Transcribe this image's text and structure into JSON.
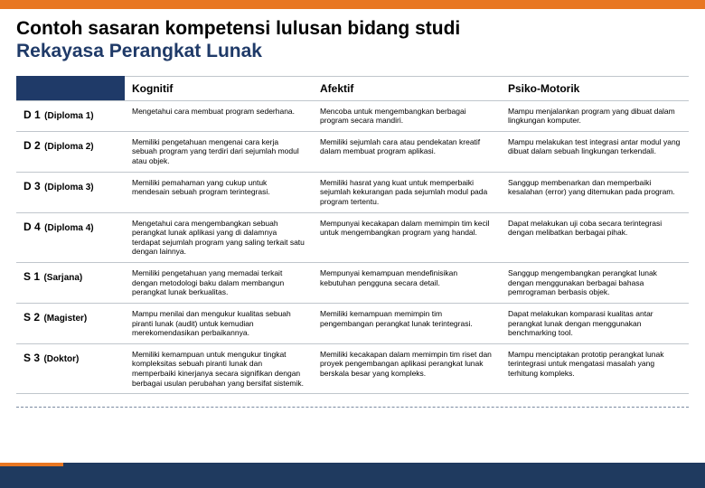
{
  "colors": {
    "orange": "#e87722",
    "navy": "#1f3a68",
    "footer": "#1f3a5f",
    "title_accent": "#1f3a68",
    "grid": "#c0c6cc"
  },
  "title": {
    "line1": "Contoh sasaran kompetensi lulusan bidang studi",
    "line2": "Rekayasa Perangkat Lunak"
  },
  "headers": {
    "kognitif": "Kognitif",
    "afektif": "Afektif",
    "psiko": "Psiko-Motorik"
  },
  "rows": [
    {
      "level": "D 1",
      "note": "(Diploma 1)",
      "kognitif": "Mengetahui cara membuat program sederhana.",
      "afektif": "Mencoba untuk mengembangkan berbagai program secara mandiri.",
      "psiko": "Mampu menjalankan program yang dibuat dalam lingkungan komputer."
    },
    {
      "level": "D 2",
      "note": "(Diploma 2)",
      "kognitif": "Memiliki pengetahuan mengenai cara kerja sebuah program yang terdiri dari sejumlah modul atau objek.",
      "afektif": "Memiliki sejumlah cara atau pendekatan kreatif dalam membuat program aplikasi.",
      "psiko": "Mampu melakukan test integrasi antar modul yang dibuat dalam sebuah lingkungan terkendali."
    },
    {
      "level": "D 3",
      "note": "(Diploma 3)",
      "kognitif": "Memiliki pemahaman yang cukup untuk mendesain sebuah program terintegrasi.",
      "afektif": "Memiliki hasrat yang kuat untuk memperbaiki sejumlah kekurangan pada sejumlah modul pada program tertentu.",
      "psiko": "Sanggup membenarkan dan memperbaiki kesalahan (error) yang ditemukan pada program."
    },
    {
      "level": "D 4",
      "note": "(Diploma 4)",
      "kognitif": "Mengetahui cara mengembangkan sebuah perangkat lunak aplikasi yang di dalamnya terdapat sejumlah program yang saling terkait satu dengan lainnya.",
      "afektif": "Mempunyai kecakapan dalam memimpin tim kecil untuk mengembangkan program yang handal.",
      "psiko": "Dapat melakukan uji coba secara terintegrasi dengan melibatkan berbagai pihak."
    },
    {
      "level": "S 1",
      "note": "(Sarjana)",
      "kognitif": "Memiliki pengetahuan yang memadai terkait dengan metodologi baku dalam membangun perangkat lunak berkualitas.",
      "afektif": "Mempunyai kemampuan mendefinisikan kebutuhan pengguna secara detail.",
      "psiko": "Sanggup mengembangkan perangkat lunak dengan menggunakan berbagai bahasa pemrograman berbasis objek."
    },
    {
      "level": "S 2",
      "note": "(Magister)",
      "kognitif": "Mampu menilai dan mengukur kualitas sebuah piranti lunak (audit) untuk kemudian merekomendasikan perbaikannya.",
      "afektif": "Memiliki kemampuan memimpin tim pengembangan perangkat lunak terintegrasi.",
      "psiko": "Dapat melakukan komparasi kualitas antar perangkat lunak dengan menggunakan benchmarking tool."
    },
    {
      "level": "S 3",
      "note": "(Doktor)",
      "kognitif": "Memiliki kemampuan untuk mengukur tingkat kompleksitas sebuah piranti lunak dan memperbaiki kinerjanya secara signifikan dengan berbagai usulan perubahan yang bersifat sistemik.",
      "afektif": "Memiliki kecakapan dalam memimpin tim riset dan proyek pengembangan aplikasi perangkat lunak berskala besar yang kompleks.",
      "psiko": "Mampu menciptakan prototip perangkat lunak terintegrasi untuk mengatasi masalah yang terhitung kompleks."
    }
  ]
}
